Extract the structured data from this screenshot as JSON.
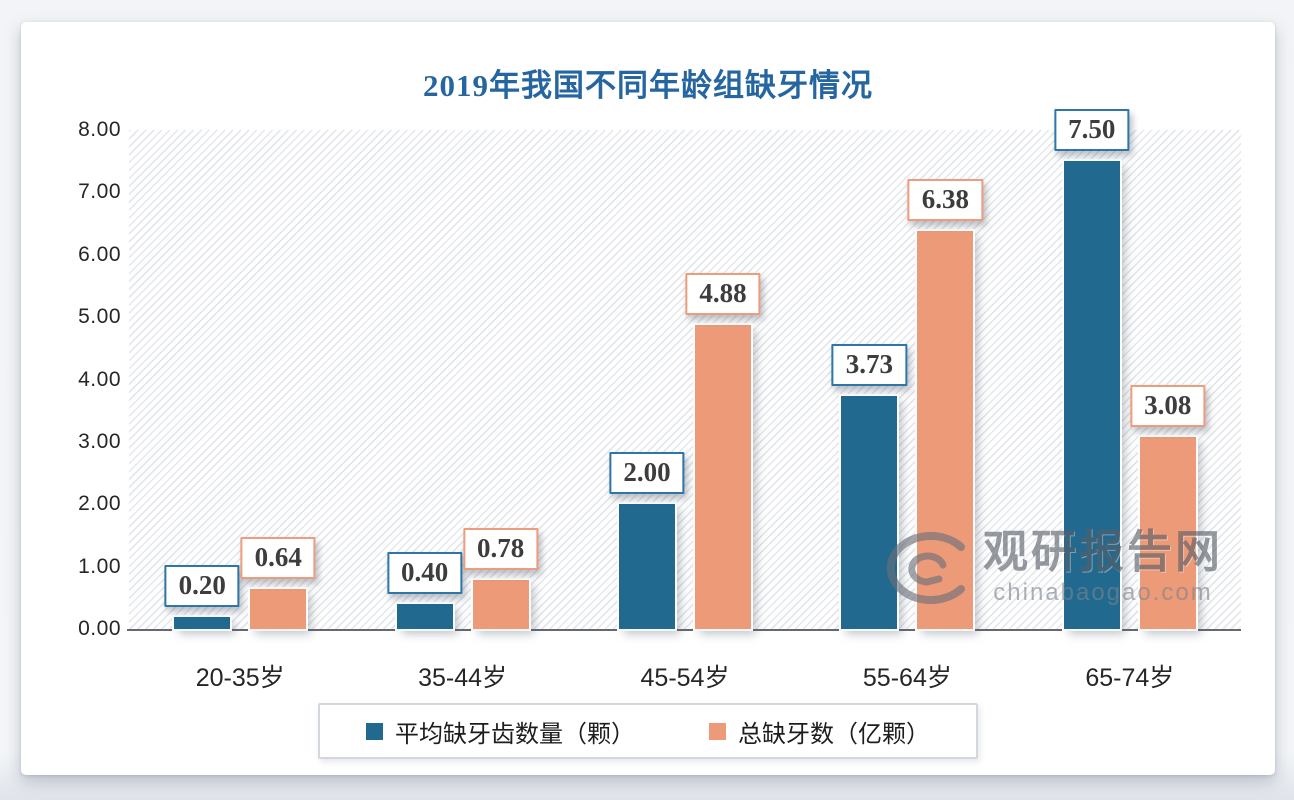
{
  "chart_data": {
    "type": "bar",
    "title": "2019年我国不同年龄组缺牙情况",
    "categories": [
      "20-35岁",
      "35-44岁",
      "45-54岁",
      "55-64岁",
      "65-74岁"
    ],
    "series": [
      {
        "name": "平均缺牙齿数量（颗）",
        "color": "#21698f",
        "label_border": "#2e75a8",
        "values": [
          0.2,
          0.4,
          2.0,
          3.73,
          7.5
        ],
        "labels": [
          "0.20",
          "0.40",
          "2.00",
          "3.73",
          "7.50"
        ]
      },
      {
        "name": "总缺牙数（亿颗）",
        "color": "#ec9a78",
        "label_border": "#ed9c7d",
        "values": [
          0.64,
          0.78,
          4.88,
          6.38,
          3.08
        ],
        "labels": [
          "0.64",
          "0.78",
          "4.88",
          "6.38",
          "3.08"
        ]
      }
    ],
    "ylim": [
      0,
      8
    ],
    "ytick_step": 1,
    "yticks": [
      "0.00",
      "1.00",
      "2.00",
      "3.00",
      "4.00",
      "5.00",
      "6.00",
      "7.00",
      "8.00"
    ],
    "grid": false,
    "legend_position": "bottom",
    "plot_background": "diagonal-hatch"
  },
  "watermark": {
    "name": "观研报告网",
    "domain": "chinabaogao.com"
  },
  "colors": {
    "title": "#2565a0",
    "series_blue": "#21698f",
    "series_orange": "#ec9a78",
    "axis_text": "#262626",
    "axis_line": "#65696e",
    "watermark_gray": "#585f68"
  }
}
